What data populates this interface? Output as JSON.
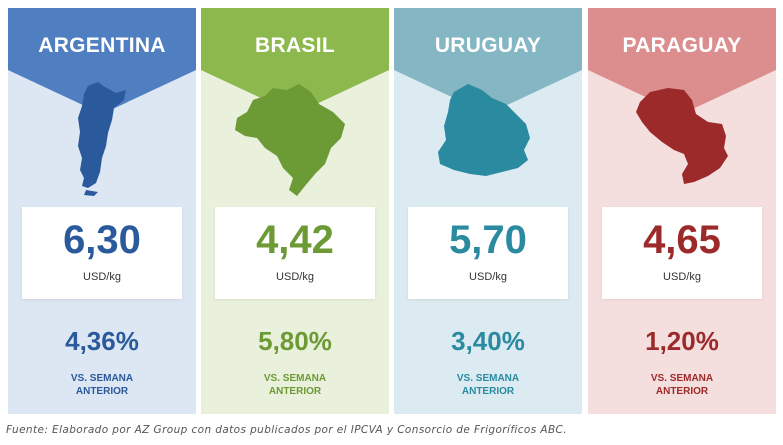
{
  "cards": [
    {
      "country": "ARGENTINA",
      "price": "6,30",
      "unit": "USD/kg",
      "change": "4,36%",
      "vs_line1": "VS. SEMANA",
      "vs_line2": "ANTERIOR",
      "map_icon": "argentina-map-icon",
      "colors": {
        "header": "#4f7fc1",
        "body": "#dde6f3",
        "text": "#2b5a9c",
        "map": "#2b5a9c"
      }
    },
    {
      "country": "BRASIL",
      "price": "4,42",
      "unit": "USD/kg",
      "change": "5,80%",
      "vs_line1": "VS. SEMANA",
      "vs_line2": "ANTERIOR",
      "map_icon": "brazil-map-icon",
      "colors": {
        "header": "#8db84e",
        "body": "#e9f0dc",
        "text": "#6c9a34",
        "map": "#6c9a34"
      }
    },
    {
      "country": "URUGUAY",
      "price": "5,70",
      "unit": "USD/kg",
      "change": "3,40%",
      "vs_line1": "VS. SEMANA",
      "vs_line2": "ANTERIOR",
      "map_icon": "uruguay-map-icon",
      "colors": {
        "header": "#84b6c4",
        "body": "#dcebf1",
        "text": "#2a8aa0",
        "map": "#2a8aa0"
      }
    },
    {
      "country": "PARAGUAY",
      "price": "4,65",
      "unit": "USD/kg",
      "change": "1,20%",
      "vs_line1": "VS. SEMANA",
      "vs_line2": "ANTERIOR",
      "map_icon": "paraguay-map-icon",
      "colors": {
        "header": "#dc8e8e",
        "body": "#f5dede",
        "text": "#9c2a2a",
        "map": "#9c2a2a"
      }
    }
  ],
  "source": "Fuente: Elaborado por AZ Group con datos publicados por el IPCVA y Consorcio de Frigoríficos ABC."
}
